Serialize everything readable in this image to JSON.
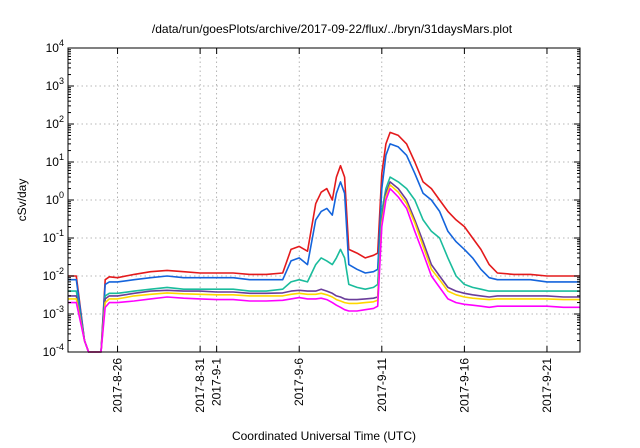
{
  "chart_data": {
    "type": "line",
    "title": "/data/run/goesPlots/archive/2017-09-22/flux/../bryn/31daysMars.plot",
    "xlabel": "Coordinated Universal Time (UTC)",
    "ylabel": "cSv/day",
    "yscale": "log",
    "ylim": [
      0.0001,
      10000
    ],
    "xlim": [
      "2017-08-23",
      "2017-09-23"
    ],
    "grid": true,
    "x_ticks": [
      {
        "date": "2017-08-26",
        "label": "2017-8-26"
      },
      {
        "date": "2017-08-31",
        "label": "2017-8-31"
      },
      {
        "date": "2017-09-01",
        "label": "2017-9-1"
      },
      {
        "date": "2017-09-06",
        "label": "2017-9-6"
      },
      {
        "date": "2017-09-11",
        "label": "2017-9-11"
      },
      {
        "date": "2017-09-16",
        "label": "2017-9-16"
      },
      {
        "date": "2017-09-21",
        "label": "2017-9-21"
      }
    ],
    "y_ticks": [
      {
        "value": 0.0001,
        "base": "10",
        "exp": "-4"
      },
      {
        "value": 0.001,
        "base": "10",
        "exp": "-3"
      },
      {
        "value": 0.01,
        "base": "10",
        "exp": "-2"
      },
      {
        "value": 0.1,
        "base": "10",
        "exp": "-1"
      },
      {
        "value": 1,
        "base": "10",
        "exp": "0"
      },
      {
        "value": 10,
        "base": "10",
        "exp": "1"
      },
      {
        "value": 100,
        "base": "10",
        "exp": "2"
      },
      {
        "value": 1000,
        "base": "10",
        "exp": "3"
      },
      {
        "value": 10000,
        "base": "10",
        "exp": "4"
      }
    ],
    "x": [
      "2017-08-23T00:00",
      "2017-08-23T12:00",
      "2017-08-24T00:00",
      "2017-08-24T06:00",
      "2017-08-24T12:00",
      "2017-08-25T00:00",
      "2017-08-25T06:00",
      "2017-08-25T12:00",
      "2017-08-26T00:00",
      "2017-08-27T00:00",
      "2017-08-28T00:00",
      "2017-08-29T00:00",
      "2017-08-30T00:00",
      "2017-08-31T00:00",
      "2017-09-01T00:00",
      "2017-09-02T00:00",
      "2017-09-03T00:00",
      "2017-09-04T00:00",
      "2017-09-05T00:00",
      "2017-09-05T12:00",
      "2017-09-06T00:00",
      "2017-09-06T12:00",
      "2017-09-07T00:00",
      "2017-09-07T08:00",
      "2017-09-07T16:00",
      "2017-09-08T00:00",
      "2017-09-08T06:00",
      "2017-09-08T12:00",
      "2017-09-08T18:00",
      "2017-09-09T00:00",
      "2017-09-09T12:00",
      "2017-09-10T00:00",
      "2017-09-10T12:00",
      "2017-09-10T18:00",
      "2017-09-11T00:00",
      "2017-09-11T06:00",
      "2017-09-11T12:00",
      "2017-09-12T00:00",
      "2017-09-12T12:00",
      "2017-09-13T00:00",
      "2017-09-13T12:00",
      "2017-09-14T00:00",
      "2017-09-14T12:00",
      "2017-09-15T00:00",
      "2017-09-15T12:00",
      "2017-09-16T00:00",
      "2017-09-16T12:00",
      "2017-09-17T00:00",
      "2017-09-17T12:00",
      "2017-09-18T00:00",
      "2017-09-19T00:00",
      "2017-09-20T00:00",
      "2017-09-21T00:00",
      "2017-09-22T00:00",
      "2017-09-23T00:00"
    ],
    "series": [
      {
        "color": "#e41a1c",
        "values": [
          0.01,
          0.01,
          0.0002,
          0.0001,
          0.0001,
          0.0001,
          0.008,
          0.0095,
          0.009,
          0.011,
          0.013,
          0.014,
          0.013,
          0.012,
          0.012,
          0.012,
          0.011,
          0.011,
          0.012,
          0.05,
          0.06,
          0.045,
          0.8,
          1.6,
          2.0,
          1.0,
          4.0,
          8.0,
          4.0,
          0.05,
          0.04,
          0.03,
          0.035,
          0.04,
          5.0,
          30.0,
          60.0,
          50.0,
          30.0,
          10.0,
          3.0,
          2.0,
          1.0,
          0.5,
          0.3,
          0.2,
          0.1,
          0.05,
          0.02,
          0.012,
          0.011,
          0.011,
          0.01,
          0.01,
          0.01
        ]
      },
      {
        "color": "#1464dc",
        "values": [
          0.008,
          0.008,
          0.0002,
          0.0001,
          0.0001,
          0.0001,
          0.006,
          0.007,
          0.007,
          0.008,
          0.009,
          0.01,
          0.009,
          0.009,
          0.009,
          0.009,
          0.008,
          0.008,
          0.008,
          0.025,
          0.03,
          0.02,
          0.3,
          0.5,
          0.6,
          0.4,
          1.5,
          3.0,
          1.5,
          0.02,
          0.015,
          0.012,
          0.013,
          0.015,
          2.0,
          15.0,
          30.0,
          25.0,
          15.0,
          5.0,
          1.5,
          1.0,
          0.5,
          0.15,
          0.08,
          0.05,
          0.03,
          0.015,
          0.009,
          0.008,
          0.008,
          0.008,
          0.007,
          0.007,
          0.007
        ]
      },
      {
        "color": "#1abc9c",
        "values": [
          0.004,
          0.004,
          0.0002,
          0.0001,
          0.0001,
          0.0001,
          0.003,
          0.0035,
          0.0035,
          0.004,
          0.0045,
          0.005,
          0.0045,
          0.0045,
          0.0045,
          0.0045,
          0.004,
          0.004,
          0.0045,
          0.007,
          0.008,
          0.007,
          0.02,
          0.03,
          0.025,
          0.02,
          0.03,
          0.05,
          0.03,
          0.006,
          0.005,
          0.0045,
          0.005,
          0.006,
          0.5,
          2.0,
          4.0,
          3.0,
          2.0,
          1.0,
          0.3,
          0.15,
          0.1,
          0.03,
          0.01,
          0.006,
          0.005,
          0.0045,
          0.004,
          0.004,
          0.004,
          0.004,
          0.004,
          0.004,
          0.004
        ]
      },
      {
        "color": "#6a3d9a",
        "values": [
          0.003,
          0.003,
          0.0002,
          0.0001,
          0.0001,
          0.0001,
          0.0025,
          0.003,
          0.003,
          0.0035,
          0.004,
          0.0042,
          0.004,
          0.004,
          0.0038,
          0.0038,
          0.0035,
          0.0035,
          0.0036,
          0.004,
          0.0042,
          0.004,
          0.004,
          0.0045,
          0.004,
          0.0035,
          0.003,
          0.0028,
          0.0025,
          0.0024,
          0.0024,
          0.0025,
          0.0026,
          0.0028,
          0.3,
          1.5,
          3.0,
          2.0,
          1.0,
          0.3,
          0.08,
          0.02,
          0.01,
          0.005,
          0.004,
          0.0035,
          0.0032,
          0.003,
          0.0028,
          0.003,
          0.003,
          0.003,
          0.003,
          0.0028,
          0.0028
        ]
      },
      {
        "color": "#ffd700",
        "values": [
          0.0025,
          0.0025,
          0.0002,
          0.0001,
          0.0001,
          0.0001,
          0.002,
          0.0025,
          0.0025,
          0.003,
          0.0033,
          0.0036,
          0.0034,
          0.0033,
          0.0032,
          0.0032,
          0.003,
          0.003,
          0.003,
          0.0033,
          0.0035,
          0.0033,
          0.0033,
          0.0035,
          0.0032,
          0.0028,
          0.0024,
          0.0022,
          0.002,
          0.0019,
          0.0019,
          0.002,
          0.0021,
          0.0023,
          0.25,
          1.2,
          2.5,
          1.6,
          0.8,
          0.25,
          0.06,
          0.015,
          0.008,
          0.004,
          0.0032,
          0.0028,
          0.0026,
          0.0025,
          0.0024,
          0.0025,
          0.0025,
          0.0025,
          0.0025,
          0.0024,
          0.0024
        ]
      },
      {
        "color": "#ff00ff",
        "values": [
          0.002,
          0.002,
          0.0002,
          0.0001,
          0.0001,
          0.0001,
          0.0015,
          0.002,
          0.002,
          0.0022,
          0.0025,
          0.0028,
          0.0026,
          0.0025,
          0.0024,
          0.0024,
          0.0022,
          0.0022,
          0.0023,
          0.0025,
          0.0027,
          0.0025,
          0.0025,
          0.0026,
          0.0024,
          0.002,
          0.0017,
          0.0015,
          0.0013,
          0.0012,
          0.0012,
          0.0013,
          0.0014,
          0.0016,
          0.2,
          1.0,
          2.0,
          1.2,
          0.6,
          0.15,
          0.04,
          0.01,
          0.005,
          0.0025,
          0.002,
          0.0018,
          0.0017,
          0.0016,
          0.0015,
          0.0016,
          0.0016,
          0.0016,
          0.0016,
          0.0015,
          0.0015
        ]
      }
    ]
  }
}
